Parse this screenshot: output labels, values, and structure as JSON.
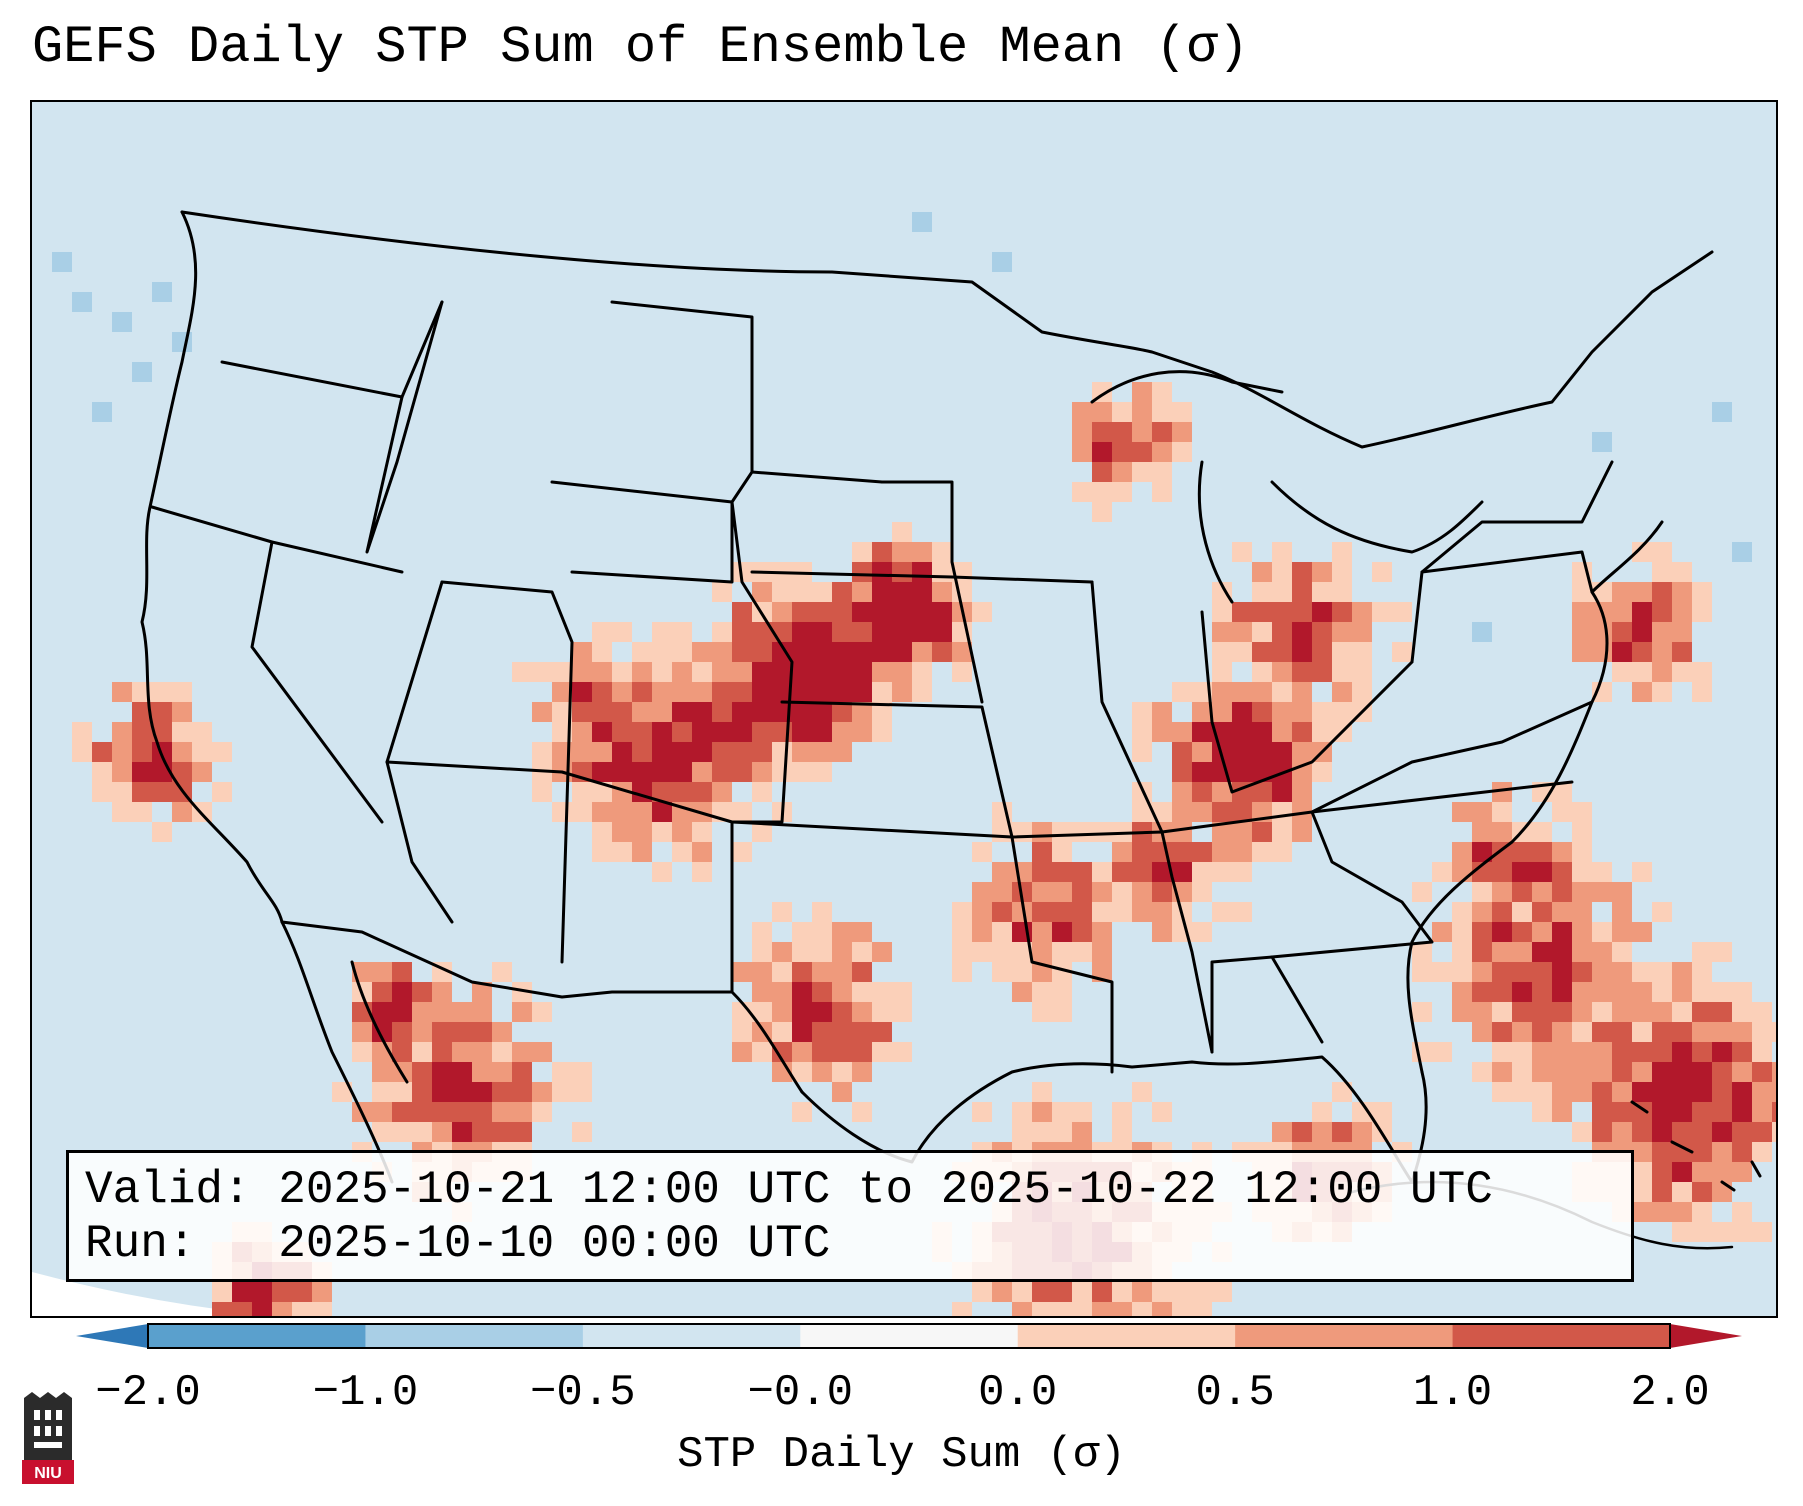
{
  "title": "GEFS Daily STP Sum of Ensemble Mean (σ)",
  "info": {
    "valid_line": "Valid: 2025-10-21 12:00 UTC to 2025-10-22 12:00 UTC",
    "run_line": "Run:   2025-10-10 00:00 UTC"
  },
  "colorbar": {
    "label": "STP Daily Sum (σ)",
    "ticks": [
      "−2.0",
      "−1.0",
      "−0.5",
      "−0.0",
      "0.0",
      "0.5",
      "1.0",
      "2.0"
    ],
    "colors": [
      "#2e78b7",
      "#5aa0cd",
      "#a9cfe6",
      "#d2e5f0",
      "#f7f7f7",
      "#fbd0b9",
      "#ef9a7c",
      "#d25849",
      "#b2182b"
    ]
  },
  "map": {
    "projection": "Lambert conformal (CONUS)",
    "background_color": "#d2e5f0"
  },
  "logo": {
    "text": "NIU",
    "icon": "niu-logo-icon"
  }
}
